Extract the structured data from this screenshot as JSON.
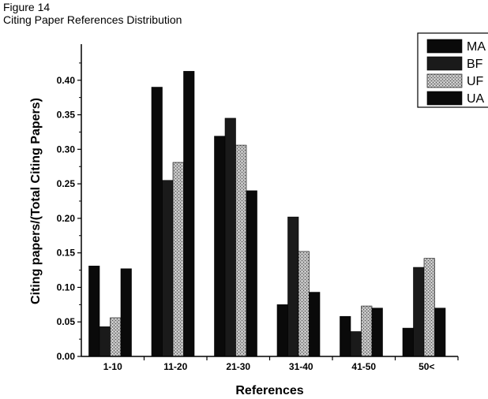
{
  "figure": {
    "label": "Figure 14",
    "title": "Citing Paper References Distribution"
  },
  "chart_data": {
    "type": "bar",
    "categories": [
      "1-10",
      "11-20",
      "21-30",
      "31-40",
      "41-50",
      "50<"
    ],
    "series": [
      {
        "name": "MA",
        "values": [
          0.131,
          0.39,
          0.319,
          0.075,
          0.058,
          0.041
        ],
        "color": "#0a0a0a",
        "pattern": "solid"
      },
      {
        "name": "BF",
        "values": [
          0.043,
          0.255,
          0.345,
          0.202,
          0.036,
          0.129
        ],
        "color": "#1a1a1a",
        "pattern": "solid"
      },
      {
        "name": "UF",
        "values": [
          0.056,
          0.281,
          0.306,
          0.152,
          0.073,
          0.142
        ],
        "color": "#9a9a9a",
        "pattern": "stipple"
      },
      {
        "name": "UA",
        "values": [
          0.127,
          0.413,
          0.24,
          0.093,
          0.07,
          0.07
        ],
        "color": "#0a0a0a",
        "pattern": "solid"
      }
    ],
    "xlabel": "References",
    "ylabel": "Citing papers/(Total Citing Papers)",
    "ylim": [
      0,
      0.45
    ],
    "yticks": [
      "0.00",
      "0.05",
      "0.10",
      "0.15",
      "0.20",
      "0.25",
      "0.30",
      "0.35",
      "0.40"
    ],
    "grid": false,
    "legend_position": "top-right"
  }
}
